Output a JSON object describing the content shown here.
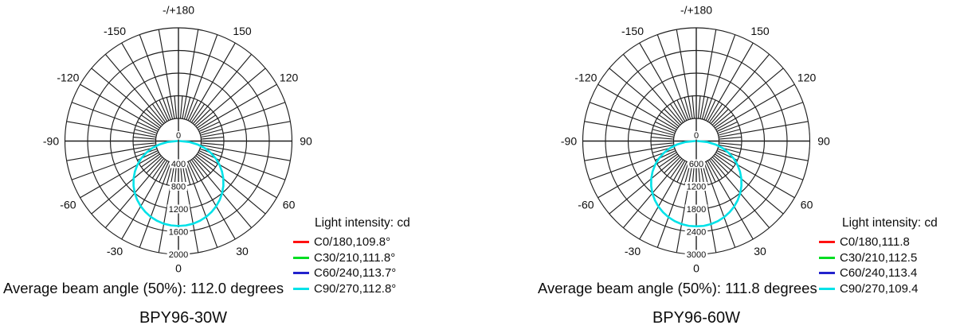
{
  "page": {
    "background": "#ffffff",
    "text_color": "#0d0d0d",
    "grid_color": "#1e1e1e",
    "curve_color": "#00e2e8"
  },
  "charts": [
    {
      "model": "BPY96-30W",
      "beam_angle_text": "Average beam angle (50%): 112.0 degrees",
      "legend_title": "Light intensity: cd",
      "legend_entries": [
        {
          "label": "C0/180,109.8°",
          "color": "#ff1111"
        },
        {
          "label": "C30/210,111.8°",
          "color": "#00dd22"
        },
        {
          "label": "C60/240,113.7°",
          "color": "#2222cc"
        },
        {
          "label": "C90/270,112.8°",
          "color": "#00e2e8"
        }
      ]
    },
    {
      "model": "BPY96-60W",
      "beam_angle_text": "Average beam angle (50%): 111.8 degrees",
      "legend_title": "Light intensity: cd",
      "legend_entries": [
        {
          "label": "C0/180,111.8",
          "color": "#ff1111"
        },
        {
          "label": "C30/210,112.5",
          "color": "#00dd22"
        },
        {
          "label": "C60/240,113.4",
          "color": "#2222cc"
        },
        {
          "label": "C90/270,109.4",
          "color": "#00e2e8"
        }
      ]
    }
  ],
  "chart_data": [
    {
      "type": "polar-line",
      "title": "BPY96-30W",
      "units": "cd",
      "center_label": "0",
      "ring_values": [
        400,
        800,
        1200,
        1600,
        2000
      ],
      "angle_labels": [
        {
          "deg": 180,
          "label": "-/+180"
        },
        {
          "deg": 150,
          "label": "150"
        },
        {
          "deg": 120,
          "label": "120"
        },
        {
          "deg": 90,
          "label": "90"
        },
        {
          "deg": 60,
          "label": "60"
        },
        {
          "deg": 30,
          "label": "30"
        },
        {
          "deg": 0,
          "label": "0"
        },
        {
          "deg": -30,
          "label": "-30"
        },
        {
          "deg": -60,
          "label": "-60"
        },
        {
          "deg": -90,
          "label": "-90"
        },
        {
          "deg": -120,
          "label": "-120"
        },
        {
          "deg": -150,
          "label": "-150"
        }
      ],
      "beam_angle_50pct_deg": 112.0,
      "series": [
        {
          "name": "C90/270",
          "color": "#00e2e8",
          "symmetric": true,
          "angles_deg": [
            0,
            5,
            10,
            15,
            20,
            25,
            30,
            35,
            40,
            45,
            50,
            55,
            60,
            65,
            70,
            75,
            80,
            85,
            90
          ],
          "intensity_cd": [
            1500,
            1495,
            1483,
            1458,
            1425,
            1381,
            1329,
            1268,
            1198,
            1119,
            1032,
            936,
            833,
            722,
            603,
            476,
            339,
            189,
            27
          ]
        }
      ]
    },
    {
      "type": "polar-line",
      "title": "BPY96-60W",
      "units": "cd",
      "center_label": "0",
      "ring_values": [
        600,
        1200,
        1800,
        2400,
        3000
      ],
      "angle_labels": [
        {
          "deg": 180,
          "label": "-/+180"
        },
        {
          "deg": 150,
          "label": "150"
        },
        {
          "deg": 120,
          "label": "120"
        },
        {
          "deg": 90,
          "label": "90"
        },
        {
          "deg": 60,
          "label": "60"
        },
        {
          "deg": 30,
          "label": "30"
        },
        {
          "deg": 0,
          "label": "0"
        },
        {
          "deg": -30,
          "label": "-30"
        },
        {
          "deg": -60,
          "label": "-60"
        },
        {
          "deg": -90,
          "label": "-90"
        },
        {
          "deg": -120,
          "label": "-120"
        },
        {
          "deg": -150,
          "label": "-150"
        }
      ],
      "beam_angle_50pct_deg": 111.8,
      "series": [
        {
          "name": "C90/270",
          "color": "#00e2e8",
          "symmetric": true,
          "angles_deg": [
            0,
            5,
            10,
            15,
            20,
            25,
            30,
            35,
            40,
            45,
            50,
            55,
            60,
            65,
            70,
            75,
            80,
            85,
            90
          ],
          "intensity_cd": [
            2260,
            2256,
            2234,
            2197,
            2146,
            2081,
            2003,
            1910,
            1805,
            1686,
            1554,
            1411,
            1255,
            1088,
            909,
            717,
            511,
            284,
            40
          ]
        }
      ]
    }
  ]
}
